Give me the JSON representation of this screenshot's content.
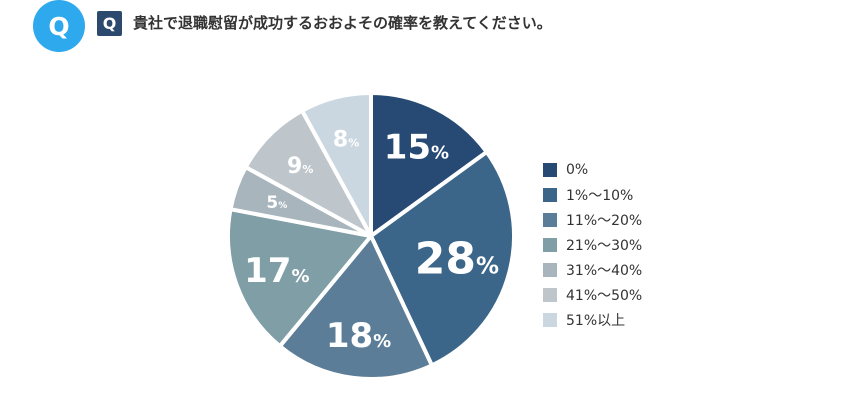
{
  "header": {
    "badge_circle": "Q",
    "badge_square": "Q",
    "question": "貴社で退職慰留が成功するおおよその確率を教えてください。"
  },
  "colors": {
    "badge_circle": "#2fa9ee",
    "badge_square": "#2c4a6e",
    "slice_border": "#ffffff"
  },
  "chart_data": {
    "type": "pie",
    "title": "",
    "start": "12 o'clock",
    "direction": "clockwise",
    "unit": "%",
    "categories": [
      "0%",
      "1%～10%",
      "11%～20%",
      "21%～30%",
      "31%～40%",
      "41%～50%",
      "51%以上"
    ],
    "values": [
      15,
      28,
      18,
      17,
      5,
      9,
      8
    ],
    "colors": [
      "#264a73",
      "#3b6689",
      "#5c7d97",
      "#7f9ea6",
      "#a8b5bc",
      "#bfc6cb",
      "#cbd7e0"
    ],
    "legend_position": "right"
  }
}
